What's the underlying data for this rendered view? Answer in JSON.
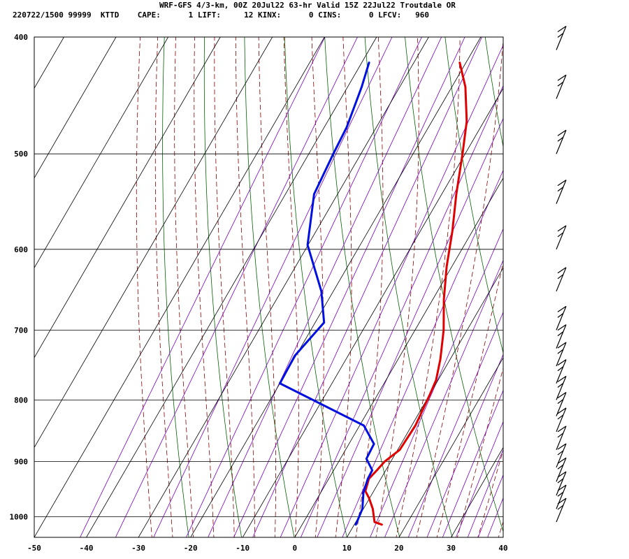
{
  "header": {
    "title": "WRF-GFS 4/3-km, 00Z 20Jul22 63-hr Valid 15Z 22Jul22 Troutdale OR",
    "info": "220722/1500 99999  KTTD    CAPE:      1 LIFT:     12 KINX:      0 CINS:      0 LFCV:   960"
  },
  "chart_data": {
    "type": "line",
    "subtype": "skew-T log-P sounding",
    "title": "WRF-GFS 4/3-km, 00Z 20Jul22 63-hr Valid 15Z 22Jul22 Troutdale OR",
    "xlabel": "",
    "ylabel": "",
    "x_ticks": [
      -50,
      -40,
      -30,
      -20,
      -10,
      0,
      10,
      20,
      30,
      40
    ],
    "y_ticks": [
      400,
      500,
      600,
      700,
      800,
      900,
      1000
    ],
    "xlim": [
      -50,
      40
    ],
    "ylim": [
      1040,
      400
    ],
    "y_scale": "log",
    "grid": true,
    "colors": {
      "temperature": "#e00000",
      "dewpoint": "#0010e0",
      "isotherm": "#000000",
      "dry_adiabat": "#006400",
      "moist_adiabat": "#8b0000",
      "mixing_ratio": "#7a00c8"
    },
    "series": [
      {
        "label": "temperature",
        "color": "#e00000",
        "points": [
          {
            "p": 1015,
            "t": 15.3
          },
          {
            "p": 1010,
            "t": 13.6
          },
          {
            "p": 985,
            "t": 11.8
          },
          {
            "p": 965,
            "t": 9.9
          },
          {
            "p": 952,
            "t": 8.4
          },
          {
            "p": 930,
            "t": 7.7
          },
          {
            "p": 915,
            "t": 8.3
          },
          {
            "p": 900,
            "t": 8.8
          },
          {
            "p": 880,
            "t": 10.4
          },
          {
            "p": 840,
            "t": 10.7
          },
          {
            "p": 790,
            "t": 10.0
          },
          {
            "p": 770,
            "t": 9.6
          },
          {
            "p": 740,
            "t": 8.1
          },
          {
            "p": 700,
            "t": 5.5
          },
          {
            "p": 660,
            "t": 2.1
          },
          {
            "p": 620,
            "t": -1.0
          },
          {
            "p": 580,
            "t": -3.8
          },
          {
            "p": 540,
            "t": -7.2
          },
          {
            "p": 500,
            "t": -10.5
          },
          {
            "p": 470,
            "t": -13.3
          },
          {
            "p": 440,
            "t": -17.4
          },
          {
            "p": 420,
            "t": -21.2
          }
        ]
      },
      {
        "label": "dewpoint",
        "color": "#0010e0",
        "points": [
          {
            "p": 1015,
            "t": 10.3
          },
          {
            "p": 985,
            "t": 9.8
          },
          {
            "p": 955,
            "t": 8.2
          },
          {
            "p": 930,
            "t": 7.5
          },
          {
            "p": 915,
            "t": 7.4
          },
          {
            "p": 895,
            "t": 5.0
          },
          {
            "p": 870,
            "t": 4.8
          },
          {
            "p": 840,
            "t": 0.8
          },
          {
            "p": 775,
            "t": -20.0
          },
          {
            "p": 735,
            "t": -20.2
          },
          {
            "p": 690,
            "t": -18.3
          },
          {
            "p": 650,
            "t": -22.3
          },
          {
            "p": 595,
            "t": -30.1
          },
          {
            "p": 540,
            "t": -34.5
          },
          {
            "p": 500,
            "t": -35.3
          },
          {
            "p": 475,
            "t": -35.7
          },
          {
            "p": 440,
            "t": -37.3
          },
          {
            "p": 420,
            "t": -38.6
          }
        ]
      }
    ],
    "wind_barbs": [
      {
        "p": 1010
      },
      {
        "p": 985
      },
      {
        "p": 960
      },
      {
        "p": 935
      },
      {
        "p": 910
      },
      {
        "p": 880
      },
      {
        "p": 850
      },
      {
        "p": 825
      },
      {
        "p": 800
      },
      {
        "p": 775
      },
      {
        "p": 750
      },
      {
        "p": 725
      },
      {
        "p": 700
      },
      {
        "p": 650
      },
      {
        "p": 600
      },
      {
        "p": 550
      },
      {
        "p": 500
      },
      {
        "p": 450
      },
      {
        "p": 410
      }
    ]
  }
}
